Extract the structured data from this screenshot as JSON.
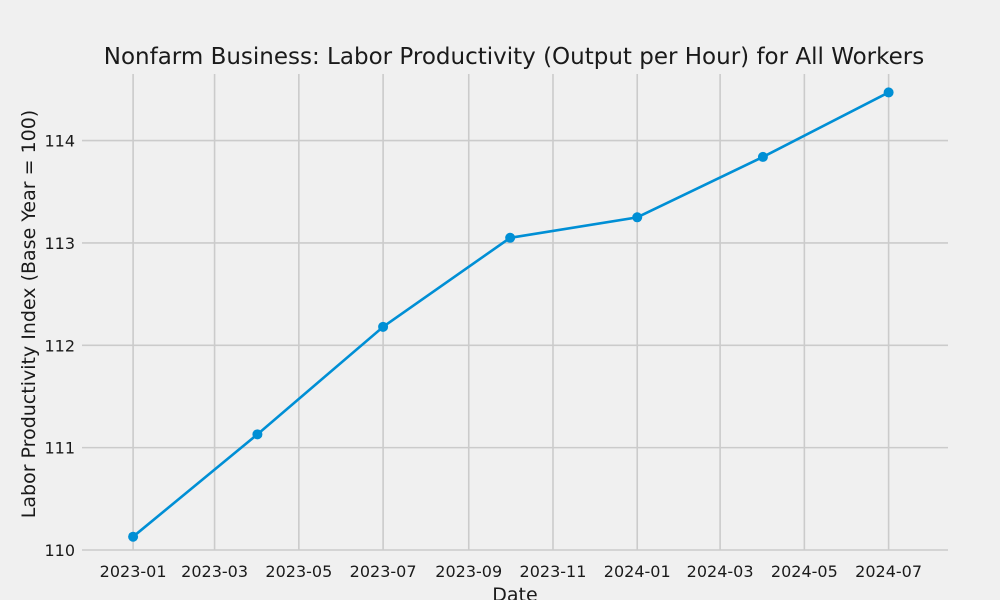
{
  "chart_data": {
    "type": "line",
    "title": "Nonfarm Business: Labor Productivity (Output per Hour) for All Workers",
    "xlabel": "Date",
    "ylabel": "Labor Productivity Index (Base Year = 100)",
    "x_type": "date",
    "xlim": [
      "2022-11-25",
      "2024-08-13"
    ],
    "ylim": [
      110,
      114.65
    ],
    "grid": true,
    "x_ticks": [
      {
        "date": "2023-01-01",
        "label": "2023-01"
      },
      {
        "date": "2023-03-01",
        "label": "2023-03"
      },
      {
        "date": "2023-05-01",
        "label": "2023-05"
      },
      {
        "date": "2023-07-01",
        "label": "2023-07"
      },
      {
        "date": "2023-09-01",
        "label": "2023-09"
      },
      {
        "date": "2023-11-01",
        "label": "2023-11"
      },
      {
        "date": "2024-01-01",
        "label": "2024-01"
      },
      {
        "date": "2024-03-01",
        "label": "2024-03"
      },
      {
        "date": "2024-05-01",
        "label": "2024-05"
      },
      {
        "date": "2024-07-01",
        "label": "2024-07"
      }
    ],
    "y_ticks": [
      110,
      111,
      112,
      113,
      114
    ],
    "series": [
      {
        "color": "#008fd5",
        "marker": "circle",
        "points": [
          {
            "x": "2023-01-01",
            "y": 110.13
          },
          {
            "x": "2023-04-01",
            "y": 111.13
          },
          {
            "x": "2023-07-01",
            "y": 112.18
          },
          {
            "x": "2023-10-01",
            "y": 113.05
          },
          {
            "x": "2024-01-01",
            "y": 113.25
          },
          {
            "x": "2024-04-01",
            "y": 113.84
          },
          {
            "x": "2024-07-01",
            "y": 114.47
          }
        ]
      }
    ]
  },
  "colors": {
    "background": "#f0f0f0",
    "grid": "#cbcbcb",
    "text": "#1a1a1a",
    "line": "#008fd5"
  }
}
